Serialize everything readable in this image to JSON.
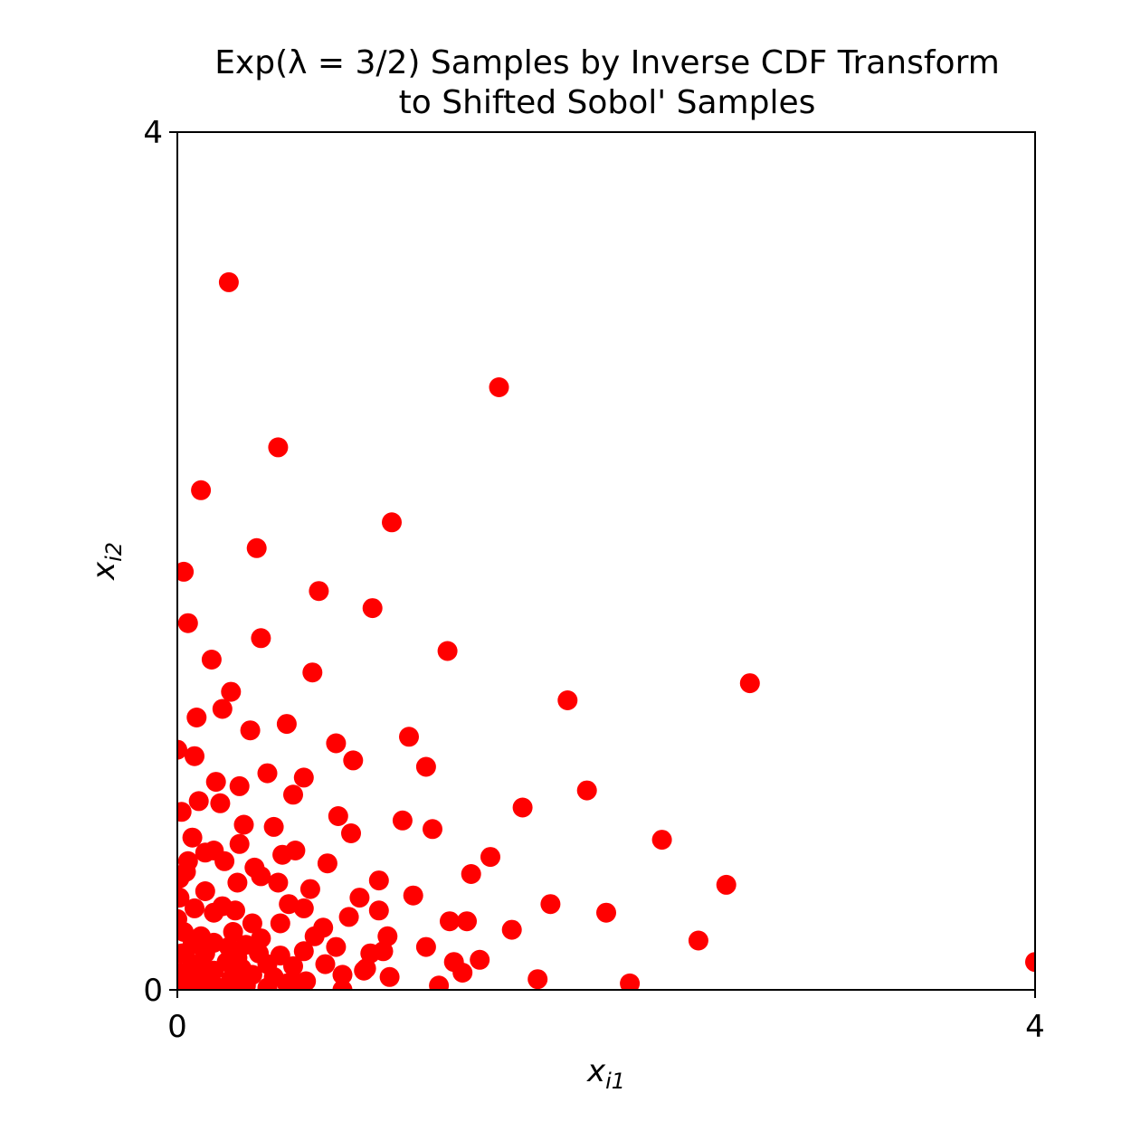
{
  "chart_data": {
    "type": "scatter",
    "title_line1": "Exp(λ = 3/2) Samples by Inverse CDF Transform",
    "title_line2": "to Shifted Sobol' Samples",
    "xlabel": "x",
    "xlabel_sub": "i1",
    "ylabel": "x",
    "ylabel_sub": "i2",
    "xlim": [
      0,
      4
    ],
    "ylim": [
      0,
      4
    ],
    "x_ticks": [
      0,
      4
    ],
    "y_ticks": [
      0,
      4
    ],
    "x_tick_labels": [
      "0",
      "4"
    ],
    "y_tick_labels": [
      "0",
      "4"
    ],
    "grid": false,
    "point_color": "#ff0000",
    "points": [
      [
        0.24,
        3.3
      ],
      [
        1.5,
        2.81
      ],
      [
        0.47,
        2.53
      ],
      [
        0.11,
        2.33
      ],
      [
        1.0,
        2.18
      ],
      [
        0.37,
        2.06
      ],
      [
        0.03,
        1.95
      ],
      [
        0.66,
        1.86
      ],
      [
        0.91,
        1.78
      ],
      [
        0.05,
        1.71
      ],
      [
        0.39,
        1.64
      ],
      [
        1.26,
        1.58
      ],
      [
        0.16,
        1.54
      ],
      [
        0.63,
        1.48
      ],
      [
        2.67,
        1.43
      ],
      [
        0.25,
        1.39
      ],
      [
        0.21,
        1.31
      ],
      [
        1.82,
        1.35
      ],
      [
        0.09,
        1.27
      ],
      [
        0.34,
        1.21
      ],
      [
        0.51,
        1.24
      ],
      [
        0.08,
        1.09
      ],
      [
        0.74,
        1.15
      ],
      [
        1.08,
        1.18
      ],
      [
        0.0,
        1.12
      ],
      [
        0.82,
        1.07
      ],
      [
        1.16,
        1.04
      ],
      [
        0.42,
        1.01
      ],
      [
        0.59,
        0.99
      ],
      [
        0.18,
        0.97
      ],
      [
        0.29,
        0.95
      ],
      [
        0.54,
        0.91
      ],
      [
        0.02,
        0.83
      ],
      [
        0.1,
        0.88
      ],
      [
        0.2,
        0.87
      ],
      [
        1.91,
        0.93
      ],
      [
        1.61,
        0.85
      ],
      [
        0.75,
        0.81
      ],
      [
        1.05,
        0.79
      ],
      [
        0.31,
        0.77
      ],
      [
        0.45,
        0.76
      ],
      [
        1.19,
        0.75
      ],
      [
        0.81,
        0.73
      ],
      [
        0.07,
        0.71
      ],
      [
        0.29,
        0.68
      ],
      [
        2.26,
        0.7
      ],
      [
        0.17,
        0.65
      ],
      [
        0.49,
        0.63
      ],
      [
        0.55,
        0.65
      ],
      [
        0.13,
        0.64
      ],
      [
        0.05,
        0.6
      ],
      [
        0.22,
        0.6
      ],
      [
        0.7,
        0.59
      ],
      [
        1.46,
        0.62
      ],
      [
        0.36,
        0.57
      ],
      [
        0.39,
        0.53
      ],
      [
        0.04,
        0.55
      ],
      [
        0.01,
        0.52
      ],
      [
        0.94,
        0.51
      ],
      [
        1.37,
        0.54
      ],
      [
        0.28,
        0.5
      ],
      [
        0.47,
        0.5
      ],
      [
        0.13,
        0.46
      ],
      [
        0.62,
        0.47
      ],
      [
        0.85,
        0.43
      ],
      [
        1.1,
        0.44
      ],
      [
        0.01,
        0.43
      ],
      [
        2.56,
        0.49
      ],
      [
        1.74,
        0.4
      ],
      [
        0.21,
        0.39
      ],
      [
        0.52,
        0.4
      ],
      [
        0.27,
        0.37
      ],
      [
        1.27,
        0.32
      ],
      [
        0.94,
        0.37
      ],
      [
        0.08,
        0.38
      ],
      [
        0.17,
        0.36
      ],
      [
        0.59,
        0.38
      ],
      [
        2.0,
        0.36
      ],
      [
        1.35,
        0.32
      ],
      [
        0.0,
        0.33
      ],
      [
        0.35,
        0.31
      ],
      [
        0.48,
        0.31
      ],
      [
        0.68,
        0.29
      ],
      [
        0.8,
        0.34
      ],
      [
        1.56,
        0.28
      ],
      [
        0.11,
        0.25
      ],
      [
        0.26,
        0.27
      ],
      [
        0.39,
        0.24
      ],
      [
        0.64,
        0.25
      ],
      [
        0.74,
        0.2
      ],
      [
        0.98,
        0.25
      ],
      [
        0.07,
        0.21
      ],
      [
        0.17,
        0.22
      ],
      [
        0.03,
        0.27
      ],
      [
        0.24,
        0.2
      ],
      [
        2.43,
        0.23
      ],
      [
        0.32,
        0.21
      ],
      [
        0.48,
        0.16
      ],
      [
        0.59,
        0.18
      ],
      [
        0.9,
        0.17
      ],
      [
        1.16,
        0.2
      ],
      [
        1.29,
        0.13
      ],
      [
        0.13,
        0.17
      ],
      [
        0.02,
        0.17
      ],
      [
        0.38,
        0.17
      ],
      [
        0.69,
        0.12
      ],
      [
        0.88,
        0.1
      ],
      [
        0.96,
        0.18
      ],
      [
        0.07,
        0.12
      ],
      [
        0.23,
        0.13
      ],
      [
        0.28,
        0.15
      ],
      [
        1.33,
        0.08
      ],
      [
        1.41,
        0.14
      ],
      [
        0.12,
        0.1
      ],
      [
        0.3,
        0.1
      ],
      [
        0.54,
        0.11
      ],
      [
        0.6,
        0.04
      ],
      [
        0.77,
        0.07
      ],
      [
        0.87,
        0.09
      ],
      [
        0.42,
        0.12
      ],
      [
        0.04,
        0.06
      ],
      [
        0.17,
        0.09
      ],
      [
        0.25,
        0.05
      ],
      [
        0.35,
        0.07
      ],
      [
        0.51,
        0.03
      ],
      [
        0.99,
        0.06
      ],
      [
        0.01,
        0.08
      ],
      [
        0.09,
        0.03
      ],
      [
        0.14,
        0.05
      ],
      [
        0.32,
        0.02
      ],
      [
        0.45,
        0.06
      ],
      [
        1.22,
        0.02
      ],
      [
        1.68,
        0.05
      ],
      [
        2.11,
        0.03
      ],
      [
        4.0,
        0.13
      ],
      [
        0.19,
        0.01
      ],
      [
        0.42,
        0.01
      ],
      [
        0.56,
        0.03
      ],
      [
        0.77,
        0.0
      ],
      [
        0.03,
        0.01
      ],
      [
        0.11,
        0.0
      ],
      [
        0.27,
        0.0
      ]
    ]
  }
}
